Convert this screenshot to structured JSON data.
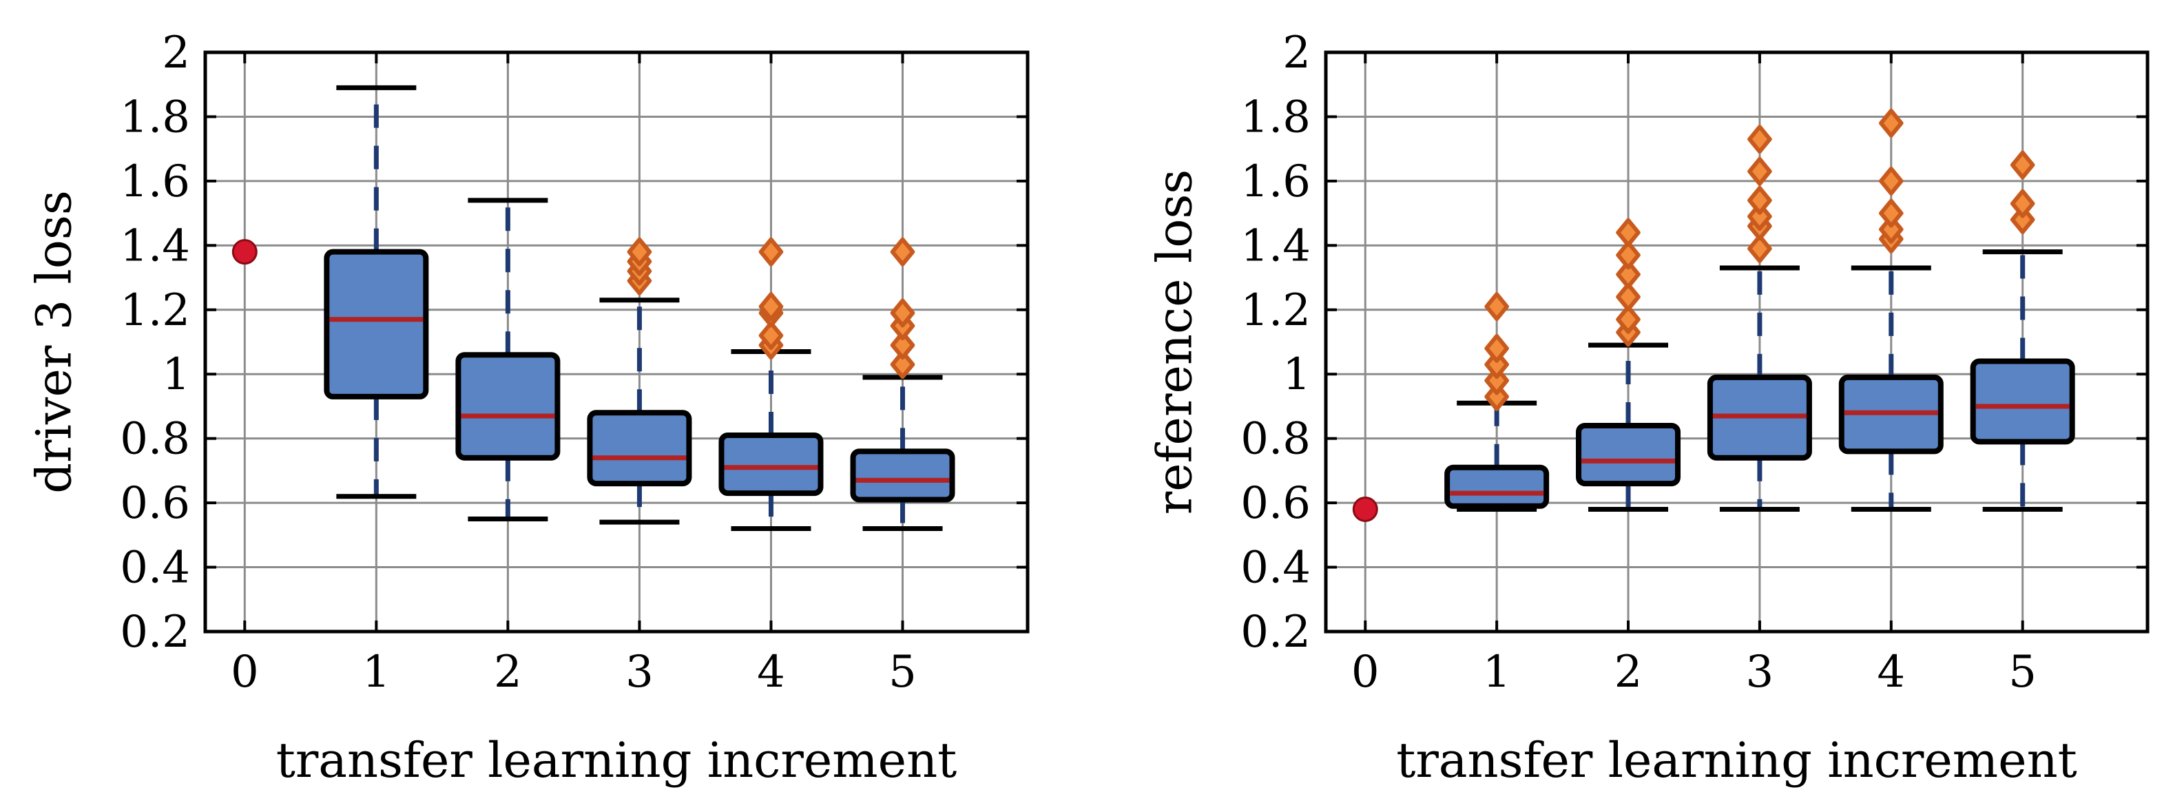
{
  "chart_data": [
    {
      "type": "box",
      "xlabel": "transfer learning increment",
      "ylabel": "driver 3 loss",
      "xlim": [
        -0.3,
        5.95
      ],
      "ylim": [
        0.2,
        2
      ],
      "yticks": [
        "0.2",
        "0.4",
        "0.6",
        "0.8",
        "1",
        "1.2",
        "1.4",
        "1.6",
        "1.8",
        "2"
      ],
      "xticks": [
        "0",
        "1",
        "2",
        "3",
        "4",
        "5"
      ],
      "grid": true,
      "baseline_point": {
        "x": 0,
        "y": 1.38
      },
      "boxes": [
        {
          "x": 1,
          "whisker_low": 0.62,
          "q1": 0.93,
          "median": 1.17,
          "q3": 1.38,
          "whisker_high": 1.89,
          "outliers": []
        },
        {
          "x": 2,
          "whisker_low": 0.55,
          "q1": 0.74,
          "median": 0.87,
          "q3": 1.06,
          "whisker_high": 1.54,
          "outliers": []
        },
        {
          "x": 3,
          "whisker_low": 0.54,
          "q1": 0.66,
          "median": 0.74,
          "q3": 0.88,
          "whisker_high": 1.23,
          "outliers": [
            1.29,
            1.32,
            1.35,
            1.38
          ]
        },
        {
          "x": 4,
          "whisker_low": 0.52,
          "q1": 0.63,
          "median": 0.71,
          "q3": 0.81,
          "whisker_high": 1.07,
          "outliers": [
            1.09,
            1.12,
            1.19,
            1.21,
            1.38
          ]
        },
        {
          "x": 5,
          "whisker_low": 0.52,
          "q1": 0.61,
          "median": 0.67,
          "q3": 0.76,
          "whisker_high": 0.99,
          "outliers": [
            1.03,
            1.09,
            1.15,
            1.19,
            1.38
          ]
        }
      ]
    },
    {
      "type": "box",
      "xlabel": "transfer learning increment",
      "ylabel": "reference loss",
      "xlim": [
        -0.3,
        5.95
      ],
      "ylim": [
        0.2,
        2
      ],
      "yticks": [
        "0.2",
        "0.4",
        "0.6",
        "0.8",
        "1",
        "1.2",
        "1.4",
        "1.6",
        "1.8",
        "2"
      ],
      "xticks": [
        "0",
        "1",
        "2",
        "3",
        "4",
        "5"
      ],
      "grid": true,
      "baseline_point": {
        "x": 0,
        "y": 0.58
      },
      "boxes": [
        {
          "x": 1,
          "whisker_low": 0.58,
          "q1": 0.59,
          "median": 0.63,
          "q3": 0.71,
          "whisker_high": 0.91,
          "outliers": [
            0.93,
            0.98,
            1.03,
            1.08,
            1.21
          ]
        },
        {
          "x": 2,
          "whisker_low": 0.58,
          "q1": 0.66,
          "median": 0.73,
          "q3": 0.84,
          "whisker_high": 1.09,
          "outliers": [
            1.13,
            1.17,
            1.24,
            1.31,
            1.37,
            1.44
          ]
        },
        {
          "x": 3,
          "whisker_low": 0.58,
          "q1": 0.74,
          "median": 0.87,
          "q3": 0.99,
          "whisker_high": 1.33,
          "outliers": [
            1.39,
            1.46,
            1.49,
            1.54,
            1.63,
            1.73
          ]
        },
        {
          "x": 4,
          "whisker_low": 0.58,
          "q1": 0.76,
          "median": 0.88,
          "q3": 0.99,
          "whisker_high": 1.33,
          "outliers": [
            1.42,
            1.45,
            1.5,
            1.6,
            1.78
          ]
        },
        {
          "x": 5,
          "whisker_low": 0.58,
          "q1": 0.79,
          "median": 0.9,
          "q3": 1.04,
          "whisker_high": 1.38,
          "outliers": [
            1.48,
            1.53,
            1.65
          ]
        }
      ]
    }
  ],
  "colors": {
    "box_fill": "#5b84c4",
    "box_edge": "#000000",
    "median": "#b22222",
    "whisker_dash": "#1f3a73",
    "cap": "#000000",
    "outlier_fill": "#f28c3c",
    "outlier_edge": "#c85a1e",
    "baseline_point": "#d6162c",
    "grid": "#8c8c8c",
    "axis": "#000000"
  }
}
